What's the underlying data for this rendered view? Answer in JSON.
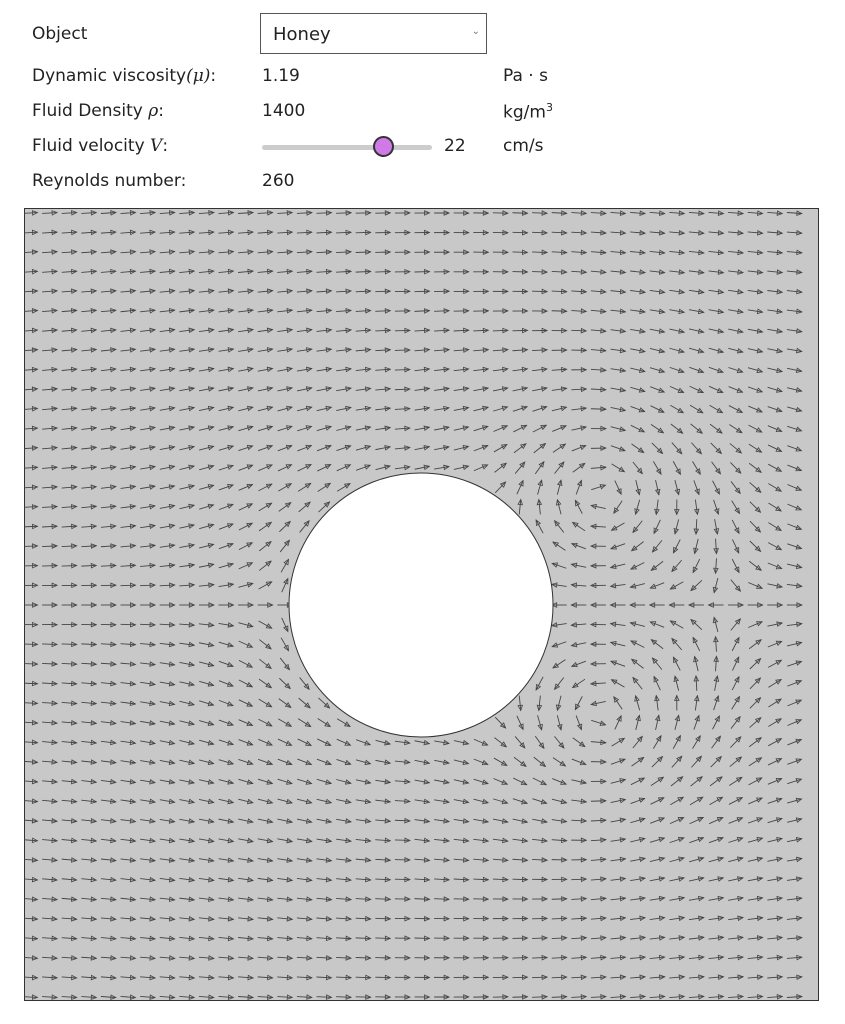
{
  "object": {
    "label": "Object",
    "selected": "Honey"
  },
  "viscosity": {
    "label": "Dynamic viscosity",
    "symbol": "(μ)",
    "suffix": ":",
    "value": "1.19",
    "unit": "Pa · s"
  },
  "density": {
    "label": "Fluid Density",
    "symbol": "ρ",
    "suffix": ":",
    "value": "1400",
    "unit": "kg/m",
    "unit_sup": "3"
  },
  "velocity": {
    "label": "Fluid velocity",
    "symbol": "V",
    "suffix": ":",
    "value": "22",
    "unit": "cm/s",
    "slider_fraction": 0.72,
    "thumb_color": "#d07ae8"
  },
  "reynolds": {
    "label": "Reynolds number:",
    "value": "260"
  },
  "field": {
    "background": "#c8c8c8",
    "arrow_color": "#444444",
    "obstacle_color": "#ffffff"
  }
}
